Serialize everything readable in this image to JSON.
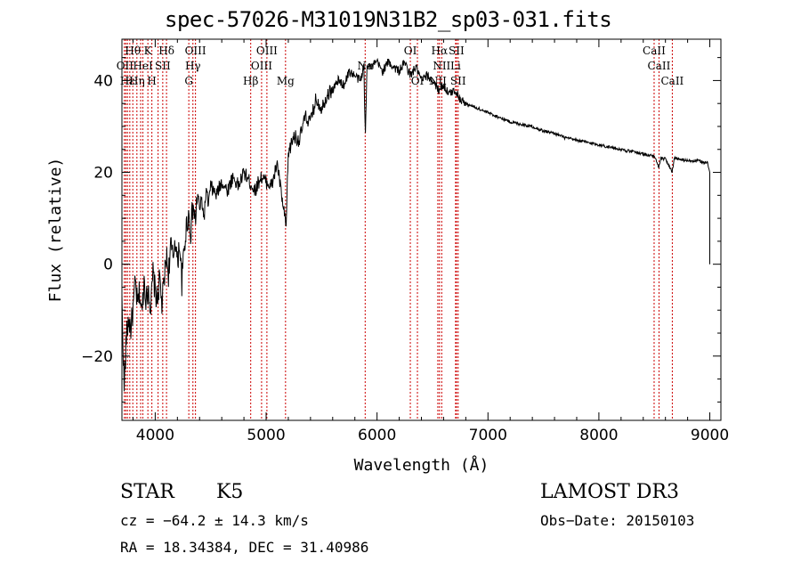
{
  "chart_data": {
    "type": "line",
    "title": "spec-57026-M31019N31B2_sp03-031.fits",
    "xlabel": "Wavelength (Å)",
    "ylabel": "Flux (relative)",
    "xlim": [
      3700,
      9100
    ],
    "ylim": [
      -34,
      49
    ],
    "xticks": [
      4000,
      5000,
      6000,
      7000,
      8000,
      9000
    ],
    "yticks": [
      -20,
      0,
      20,
      40
    ],
    "xtick_labels": [
      "4000",
      "5000",
      "6000",
      "7000",
      "8000",
      "9000"
    ],
    "ytick_labels": [
      "−20",
      "0",
      "20",
      "40"
    ],
    "grid": false,
    "series": [
      {
        "name": "spectrum",
        "color": "#000000",
        "x": [
          3700,
          3720,
          3740,
          3760,
          3780,
          3800,
          3820,
          3840,
          3860,
          3880,
          3900,
          3920,
          3940,
          3960,
          3980,
          4000,
          4020,
          4040,
          4060,
          4080,
          4100,
          4120,
          4140,
          4160,
          4180,
          4200,
          4220,
          4240,
          4260,
          4280,
          4300,
          4320,
          4340,
          4360,
          4380,
          4400,
          4420,
          4440,
          4460,
          4480,
          4500,
          4550,
          4600,
          4650,
          4700,
          4750,
          4800,
          4850,
          4900,
          4950,
          5000,
          5050,
          5100,
          5150,
          5180,
          5200,
          5250,
          5300,
          5350,
          5400,
          5450,
          5500,
          5550,
          5600,
          5650,
          5700,
          5750,
          5800,
          5850,
          5880,
          5895,
          5910,
          5950,
          6000,
          6050,
          6100,
          6150,
          6200,
          6250,
          6300,
          6350,
          6400,
          6450,
          6500,
          6550,
          6600,
          6650,
          6700,
          6750,
          6800,
          6900,
          7000,
          7100,
          7200,
          7300,
          7400,
          7500,
          7600,
          7700,
          7800,
          7900,
          8000,
          8100,
          8200,
          8300,
          8400,
          8500,
          8540,
          8560,
          8600,
          8660,
          8680,
          8700,
          8800,
          8900,
          8980,
          9000,
          9000
        ],
        "values": [
          -8,
          -27,
          -16,
          -12,
          -14,
          -10,
          -4,
          -9,
          -6,
          -11,
          -3,
          -8,
          -5,
          -10,
          -2,
          -6,
          -8,
          -3,
          -9,
          -4,
          2,
          -2,
          4,
          1,
          6,
          0,
          5,
          -4,
          3,
          8,
          11,
          7,
          13,
          9,
          15,
          12,
          14,
          10,
          16,
          13,
          17,
          15,
          18,
          16,
          19,
          17,
          20,
          18,
          16,
          19,
          18,
          17,
          22,
          13,
          8,
          24,
          28,
          27,
          32,
          31,
          36,
          34,
          37,
          38,
          40,
          39,
          42,
          41,
          40,
          43,
          28,
          44,
          43,
          44,
          42,
          44,
          43,
          42,
          44,
          41,
          43,
          40,
          41,
          40,
          38,
          39,
          37,
          38,
          36,
          35,
          34,
          33,
          32,
          31,
          30.5,
          30,
          29,
          28.5,
          27.5,
          27,
          26.5,
          26,
          25.5,
          25,
          24.5,
          24,
          23.5,
          21,
          23,
          23,
          20,
          23,
          23,
          22.5,
          22.5,
          22,
          20,
          0
        ]
      }
    ],
    "lines": {
      "color": "#cc0000",
      "positions": [
        3722,
        3735,
        3750,
        3771,
        3798,
        3835,
        3869,
        3889,
        3934,
        3970,
        4026,
        4068,
        4102,
        4303,
        4340,
        4363,
        4861,
        4959,
        5007,
        5175,
        5893,
        6300,
        6364,
        6548,
        6563,
        6583,
        6708,
        6716,
        6731,
        8498,
        8542,
        8662
      ]
    },
    "annotations": [
      {
        "text": "Hθ",
        "x": 3798,
        "row": 1
      },
      {
        "text": "K",
        "x": 3934,
        "row": 1
      },
      {
        "text": "Hδ",
        "x": 4102,
        "row": 1
      },
      {
        "text": "OIII",
        "x": 4363,
        "row": 1
      },
      {
        "text": "OIII",
        "x": 5007,
        "row": 1
      },
      {
        "text": "OI",
        "x": 6300,
        "row": 1
      },
      {
        "text": "Hα",
        "x": 6563,
        "row": 1
      },
      {
        "text": "SII",
        "x": 6716,
        "row": 1
      },
      {
        "text": "CaII",
        "x": 8498,
        "row": 1
      },
      {
        "text": "OII",
        "x": 3727,
        "row": 2
      },
      {
        "text": "HeI",
        "x": 3889,
        "row": 2
      },
      {
        "text": "SII",
        "x": 4068,
        "row": 2
      },
      {
        "text": "Hγ",
        "x": 4340,
        "row": 2
      },
      {
        "text": "OIII",
        "x": 4959,
        "row": 2
      },
      {
        "text": "NII",
        "x": 6583,
        "row": 2
      },
      {
        "text": "Li",
        "x": 6708,
        "row": 2
      },
      {
        "text": "CaII",
        "x": 8542,
        "row": 2
      },
      {
        "text": "Na",
        "x": 5893,
        "row": 2
      },
      {
        "text": "Hε",
        "x": 3750,
        "row": 3
      },
      {
        "text": "Hη",
        "x": 3835,
        "row": 3
      },
      {
        "text": "H",
        "x": 3970,
        "row": 3
      },
      {
        "text": "G",
        "x": 4303,
        "row": 3
      },
      {
        "text": "Hβ",
        "x": 4861,
        "row": 3
      },
      {
        "text": "Mg",
        "x": 5175,
        "row": 3
      },
      {
        "text": "OI",
        "x": 6364,
        "row": 3
      },
      {
        "text": "NII",
        "x": 6548,
        "row": 3
      },
      {
        "text": "SII",
        "x": 6731,
        "row": 3
      },
      {
        "text": "CaII",
        "x": 8662,
        "row": 3
      }
    ]
  },
  "footer": {
    "object_class": "STAR",
    "subclass": "K5",
    "survey": "LAMOST DR3",
    "redshift": "cz = −64.2 ± 14.3 km/s",
    "obs_date": "Obs−Date: 20150103",
    "coords": "RA =  18.34384, DEC =  31.40986"
  }
}
